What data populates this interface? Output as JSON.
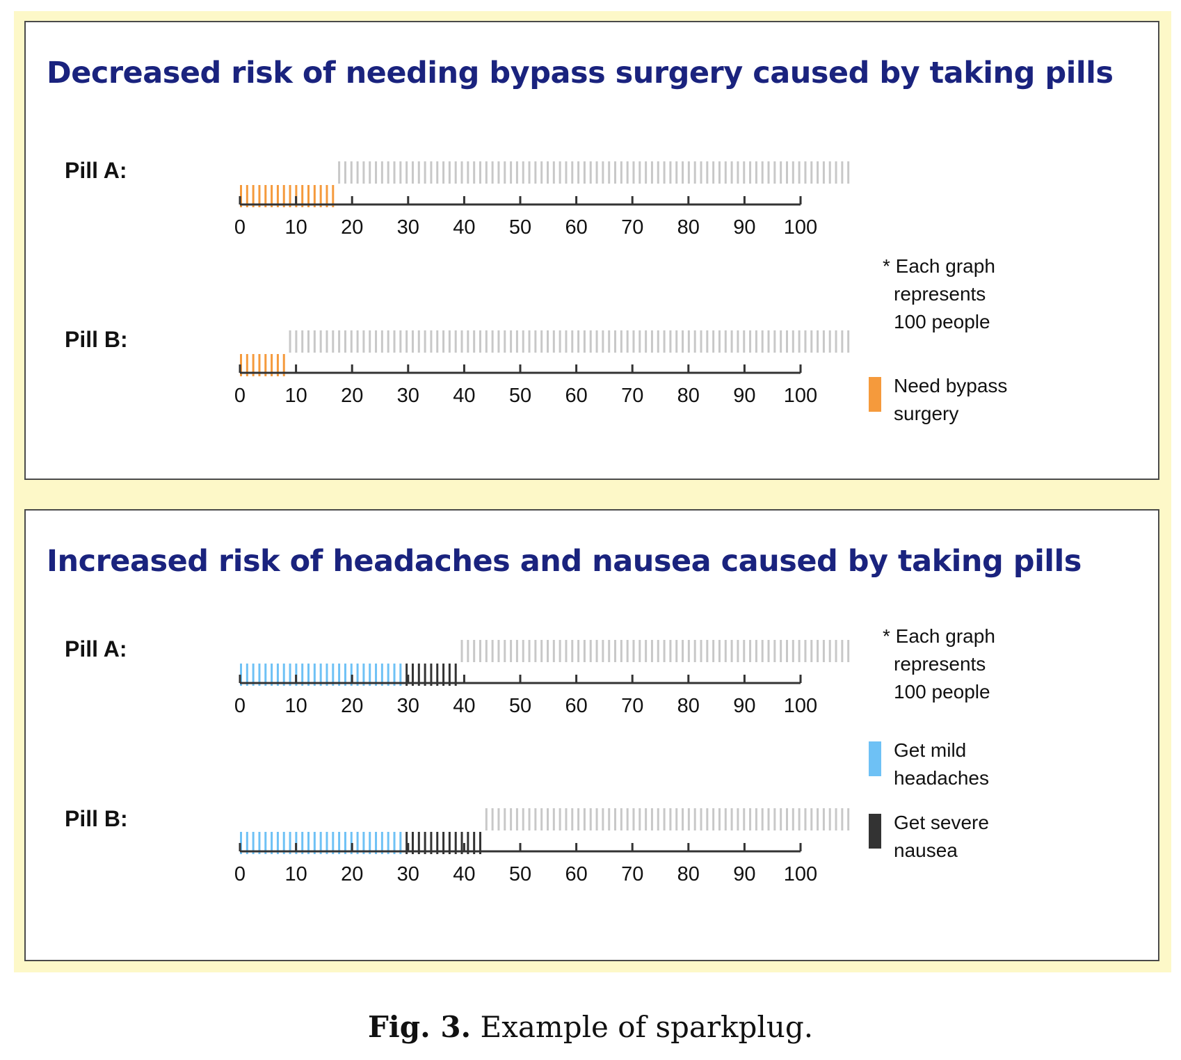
{
  "caption": {
    "label": "Fig. 3.",
    "text": "Example of sparkplug."
  },
  "colors": {
    "background_bar": "#c8c8c8",
    "bypass": "#f59a3c",
    "headache": "#6ec1f5",
    "nausea": "#333333",
    "title": "#1a237e",
    "frame": "#fdf8c8"
  },
  "chart_data": [
    {
      "type": "bar",
      "title": "Decreased risk of needing bypass surgery caused by taking pills",
      "categories": [
        "Pill A:",
        "Pill B:"
      ],
      "series": [
        {
          "name": "Need bypass surgery",
          "color_key": "bypass",
          "values": [
            16,
            8
          ]
        }
      ],
      "total": 100,
      "xlim": [
        0,
        100
      ],
      "xticks": [
        "0",
        "10",
        "20",
        "30",
        "40",
        "50",
        "60",
        "70",
        "80",
        "90",
        "100"
      ],
      "note": [
        "* Each graph",
        "represents",
        "100 people"
      ],
      "legend": [
        {
          "lines": [
            "Need bypass",
            "surgery"
          ],
          "color_key": "bypass"
        }
      ]
    },
    {
      "type": "bar",
      "title": "Increased risk of headaches and nausea caused by taking pills",
      "categories": [
        "Pill A:",
        "Pill B:"
      ],
      "series": [
        {
          "name": "Get mild headaches",
          "color_key": "headache",
          "values": [
            27,
            27
          ]
        },
        {
          "name": "Get severe nausea",
          "color_key": "nausea",
          "values": [
            9,
            13
          ]
        }
      ],
      "total": 100,
      "xlim": [
        0,
        100
      ],
      "xticks": [
        "0",
        "10",
        "20",
        "30",
        "40",
        "50",
        "60",
        "70",
        "80",
        "90",
        "100"
      ],
      "note": [
        "* Each graph",
        "represents",
        "100 people"
      ],
      "legend": [
        {
          "lines": [
            "Get mild",
            "headaches"
          ],
          "color_key": "headache"
        },
        {
          "lines": [
            "Get severe",
            "nausea"
          ],
          "color_key": "nausea"
        }
      ]
    }
  ]
}
